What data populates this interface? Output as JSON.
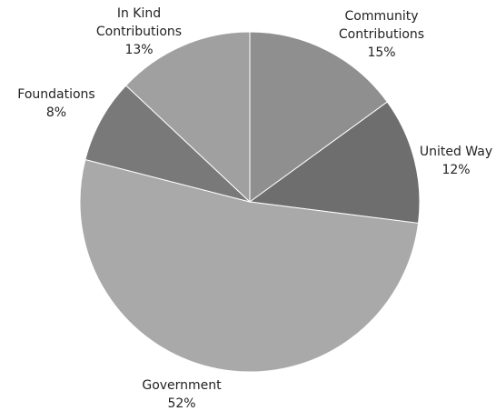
{
  "chart_data": {
    "type": "pie",
    "title": "",
    "slices": [
      {
        "name_lines": [
          "Community",
          "Contributions"
        ],
        "pct_label": "15%",
        "value": 15,
        "color": "#8f8f8f"
      },
      {
        "name_lines": [
          "United Way"
        ],
        "pct_label": "12%",
        "value": 12,
        "color": "#6e6e6e"
      },
      {
        "name_lines": [
          "Government"
        ],
        "pct_label": "52%",
        "value": 52,
        "color": "#a9a9a9"
      },
      {
        "name_lines": [
          "Foundations"
        ],
        "pct_label": "8%",
        "value": 8,
        "color": "#797979"
      },
      {
        "name_lines": [
          "In Kind",
          "Contributions"
        ],
        "pct_label": "13%",
        "value": 13,
        "color": "#a0a0a0"
      }
    ],
    "legend": "none",
    "labels_position": "outside"
  }
}
